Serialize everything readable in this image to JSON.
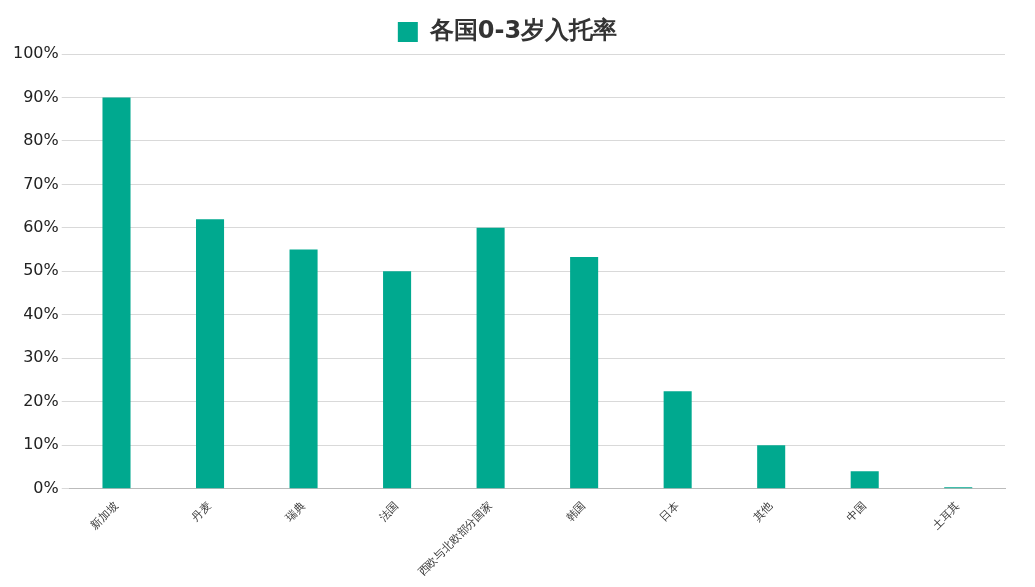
{
  "chart_data": {
    "type": "bar",
    "categories": [
      "新加坡",
      "丹麦",
      "瑞典",
      "法国",
      "西欧与北欧部分国家",
      "韩国",
      "日本",
      "其他",
      "中国",
      "土耳其"
    ],
    "series": [
      {
        "name": "各国0-3岁入托率",
        "color": "#00a98f",
        "values": [
          90,
          62,
          55,
          50,
          60,
          53.3,
          22.4,
          10,
          4,
          0.3
        ]
      }
    ],
    "ylim": [
      0,
      100
    ],
    "yticks": [
      {
        "value": 0,
        "label": "0%"
      },
      {
        "value": 10,
        "label": "10%"
      },
      {
        "value": 20,
        "label": "20%"
      },
      {
        "value": 30,
        "label": "30%"
      },
      {
        "value": 40,
        "label": "40%"
      },
      {
        "value": 50,
        "label": "50%"
      },
      {
        "value": 60,
        "label": "60%"
      },
      {
        "value": 70,
        "label": "70%"
      },
      {
        "value": 80,
        "label": "80%"
      },
      {
        "value": 90,
        "label": "90%"
      },
      {
        "value": 100,
        "label": "100%"
      }
    ],
    "grid": "y",
    "legend": "top"
  }
}
